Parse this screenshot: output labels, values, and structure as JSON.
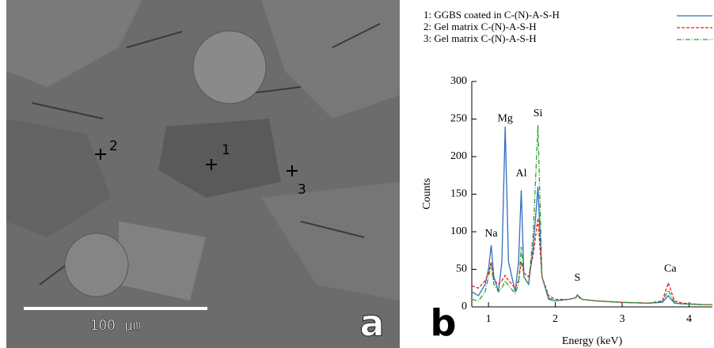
{
  "panel_a": {
    "label": "a",
    "scale_bar": "100 µm",
    "markers": [
      "1",
      "2",
      "3"
    ]
  },
  "chart_data": {
    "type": "line",
    "panel_label": "b",
    "x_label": "Energy (keV)",
    "y_label": "Counts",
    "x": [
      0.75,
      0.85,
      0.95,
      1.0,
      1.04,
      1.08,
      1.15,
      1.2,
      1.25,
      1.3,
      1.4,
      1.45,
      1.49,
      1.53,
      1.6,
      1.67,
      1.74,
      1.8,
      1.9,
      2.0,
      2.2,
      2.3,
      2.33,
      2.4,
      2.6,
      3.0,
      3.4,
      3.6,
      3.69,
      3.78,
      3.9,
      4.2,
      4.35
    ],
    "series": [
      {
        "name": "1: GGBS coated in C-(N)-A-S-H",
        "color": "#2f6fc0",
        "style": "solid",
        "values": [
          20,
          15,
          30,
          50,
          82,
          40,
          20,
          60,
          240,
          60,
          20,
          60,
          155,
          40,
          30,
          80,
          160,
          40,
          10,
          8,
          10,
          12,
          16,
          10,
          8,
          6,
          5,
          6,
          15,
          5,
          4,
          3,
          3
        ]
      },
      {
        "name": "2: Gel matrix C-(N)-A-S-H",
        "color": "#e02020",
        "style": "dashed",
        "values": [
          28,
          25,
          35,
          45,
          60,
          35,
          30,
          35,
          42,
          35,
          25,
          35,
          60,
          45,
          40,
          70,
          118,
          40,
          15,
          10,
          10,
          12,
          14,
          10,
          8,
          6,
          5,
          8,
          32,
          8,
          5,
          3,
          3
        ]
      },
      {
        "name": "3: Gel matrix C-(N)-A-S-H",
        "color": "#2ca02c",
        "style": "dashdot",
        "values": [
          10,
          8,
          20,
          40,
          55,
          30,
          20,
          25,
          35,
          28,
          18,
          30,
          80,
          40,
          30,
          100,
          242,
          40,
          12,
          8,
          10,
          12,
          15,
          10,
          8,
          6,
          5,
          7,
          22,
          6,
          4,
          3,
          3
        ]
      }
    ],
    "annotations": [
      {
        "text": "Na",
        "x": 1.04,
        "y": 97
      },
      {
        "text": "Mg",
        "x": 1.25,
        "y": 250
      },
      {
        "text": "Al",
        "x": 1.49,
        "y": 177
      },
      {
        "text": "Si",
        "x": 1.74,
        "y": 257
      },
      {
        "text": "S",
        "x": 2.33,
        "y": 38
      },
      {
        "text": "Ca",
        "x": 3.72,
        "y": 50
      }
    ],
    "xlim": [
      0.75,
      4.35
    ],
    "ylim": [
      0,
      300
    ],
    "xticks": [
      1,
      2,
      3,
      4
    ],
    "yticks": [
      0,
      50,
      100,
      150,
      200,
      250,
      300
    ],
    "legend": "top-right"
  }
}
